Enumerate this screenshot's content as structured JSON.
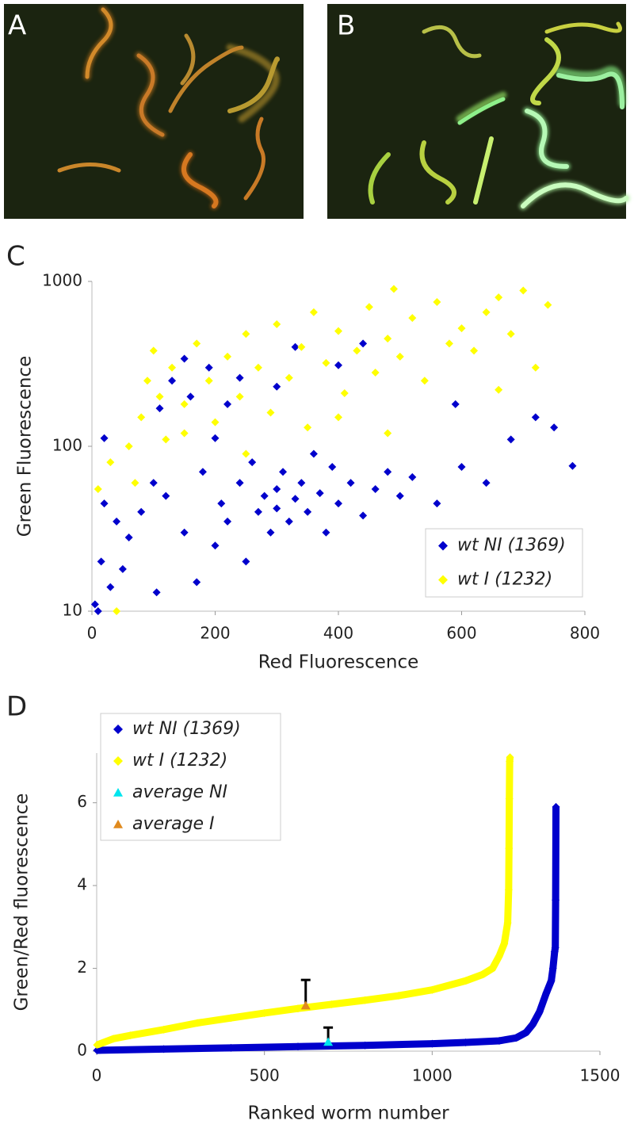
{
  "panels": {
    "a_label": "A",
    "b_label": "B"
  },
  "chart_data": [
    {
      "type": "scatter",
      "label": "C",
      "xlabel": "Red Fluorescence",
      "ylabel": "Green Fluorescence",
      "xlim": [
        0,
        800
      ],
      "xticks": [
        0,
        200,
        400,
        600,
        800
      ],
      "ylim": [
        10,
        1000
      ],
      "yticks": [
        10,
        100,
        1000
      ],
      "log_y": true,
      "legend": "lower right",
      "series": [
        {
          "name": "wt NI (1369)",
          "color": "#0000cc",
          "marker": "diamond",
          "x": [
            5,
            10,
            15,
            20,
            30,
            40,
            50,
            60,
            80,
            100,
            105,
            120,
            150,
            170,
            180,
            200,
            210,
            220,
            240,
            250,
            260,
            270,
            280,
            290,
            300,
            300,
            310,
            320,
            330,
            340,
            350,
            360,
            370,
            380,
            390,
            400,
            420,
            440,
            460,
            480,
            500,
            520,
            560,
            600,
            640,
            680,
            720,
            750,
            780,
            110,
            130,
            150,
            160,
            190,
            220,
            240,
            300,
            330,
            400,
            440,
            200,
            20,
            590
          ],
          "values": [
            11,
            10,
            20,
            45,
            14,
            35,
            18,
            28,
            40,
            60,
            13,
            50,
            30,
            15,
            70,
            25,
            45,
            35,
            60,
            20,
            80,
            40,
            50,
            30,
            55,
            42,
            70,
            35,
            48,
            60,
            40,
            90,
            52,
            30,
            75,
            45,
            60,
            38,
            55,
            70,
            50,
            65,
            45,
            75,
            60,
            110,
            150,
            130,
            76,
            170,
            250,
            340,
            200,
            300,
            180,
            260,
            230,
            400,
            310,
            420,
            112,
            112,
            180
          ]
        },
        {
          "name": "wt I (1232)",
          "color": "#ffff00",
          "marker": "diamond",
          "x": [
            40,
            10,
            30,
            60,
            80,
            90,
            100,
            110,
            130,
            150,
            170,
            190,
            200,
            220,
            240,
            250,
            270,
            290,
            300,
            320,
            340,
            350,
            360,
            380,
            400,
            410,
            430,
            450,
            460,
            480,
            490,
            500,
            520,
            540,
            560,
            580,
            600,
            620,
            640,
            660,
            680,
            700,
            740,
            720,
            660,
            150,
            70,
            120,
            250,
            400,
            480
          ],
          "values": [
            10,
            55,
            80,
            100,
            150,
            250,
            380,
            200,
            300,
            180,
            420,
            250,
            140,
            350,
            200,
            480,
            300,
            160,
            550,
            260,
            400,
            130,
            650,
            320,
            500,
            210,
            380,
            700,
            280,
            450,
            900,
            350,
            600,
            250,
            750,
            420,
            520,
            380,
            650,
            800,
            480,
            880,
            720,
            300,
            220,
            120,
            60,
            110,
            90,
            150,
            120
          ]
        }
      ]
    },
    {
      "type": "scatter",
      "label": "D",
      "xlabel": "Ranked worm number",
      "ylabel": "Green/Red fluorescence",
      "xlim": [
        0,
        1500
      ],
      "xticks": [
        0,
        500,
        1000,
        1500
      ],
      "ylim": [
        0,
        7.2
      ],
      "yticks": [
        0,
        2,
        4,
        6
      ],
      "log_y": false,
      "legend": "upper left",
      "series": [
        {
          "name": "wt NI (1369)",
          "color": "#0000cc",
          "marker": "diamond",
          "x": [
            1,
            200,
            400,
            600,
            800,
            1000,
            1100,
            1200,
            1250,
            1280,
            1300,
            1320,
            1340,
            1355,
            1360,
            1365,
            1367,
            1368,
            1369
          ],
          "values": [
            0.02,
            0.05,
            0.08,
            0.11,
            0.14,
            0.18,
            0.21,
            0.25,
            0.32,
            0.45,
            0.65,
            0.95,
            1.4,
            1.7,
            2.0,
            2.4,
            2.5,
            3.65,
            5.9
          ]
        },
        {
          "name": "wt I (1232)",
          "color": "#ffff00",
          "marker": "diamond",
          "x": [
            1,
            50,
            100,
            200,
            300,
            400,
            500,
            600,
            700,
            800,
            900,
            1000,
            1100,
            1150,
            1180,
            1200,
            1215,
            1225,
            1228,
            1229,
            1230,
            1231,
            1232
          ],
          "values": [
            0.15,
            0.3,
            0.38,
            0.52,
            0.68,
            0.8,
            0.92,
            1.03,
            1.13,
            1.23,
            1.34,
            1.48,
            1.7,
            1.85,
            2.0,
            2.3,
            2.6,
            3.1,
            3.9,
            4.9,
            6.1,
            7.0,
            7.1
          ]
        },
        {
          "name": "average NI",
          "color": "#00e5ee",
          "marker": "triangle",
          "x": [
            690
          ],
          "values": [
            0.22
          ],
          "errors": [
            0.35
          ]
        },
        {
          "name": "average I",
          "color": "#e08a1e",
          "marker": "triangle",
          "x": [
            623
          ],
          "values": [
            1.1
          ],
          "errors": [
            0.62
          ]
        }
      ]
    }
  ]
}
